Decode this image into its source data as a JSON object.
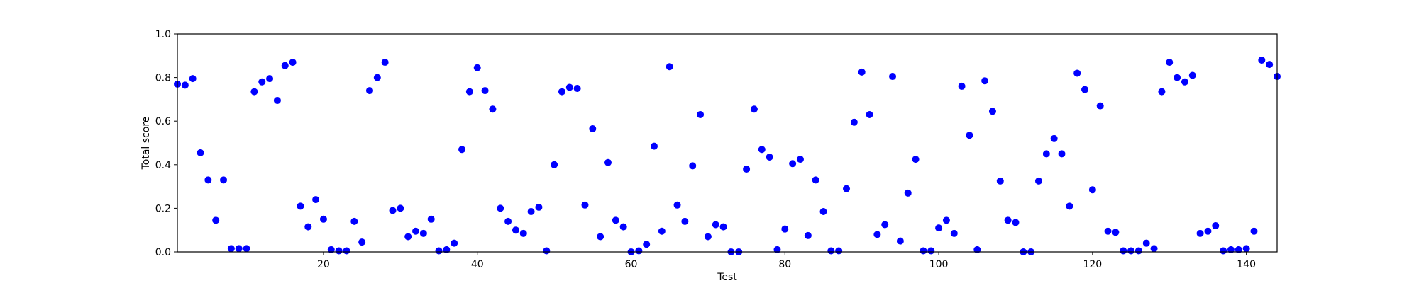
{
  "colors": {
    "point": "#0000ff",
    "axis": "#000000",
    "background": "#ffffff"
  },
  "chart_data": {
    "type": "scatter",
    "title": "",
    "xlabel": "Test",
    "ylabel": "Total score",
    "xlim": [
      1,
      144
    ],
    "ylim": [
      0.0,
      1.0
    ],
    "xticks": [
      20,
      40,
      60,
      80,
      100,
      120,
      140
    ],
    "xtick_labels": [
      "20",
      "40",
      "60",
      "80",
      "100",
      "120",
      "140"
    ],
    "yticks": [
      0.0,
      0.2,
      0.4,
      0.6,
      0.8,
      1.0
    ],
    "ytick_labels": [
      "0.0",
      "0.2",
      "0.4",
      "0.6",
      "0.8",
      "1.0"
    ],
    "grid": false,
    "legend": "none",
    "x": [
      1,
      2,
      3,
      4,
      5,
      6,
      7,
      8,
      9,
      10,
      11,
      12,
      13,
      14,
      15,
      16,
      17,
      18,
      19,
      20,
      21,
      22,
      23,
      24,
      25,
      26,
      27,
      28,
      29,
      30,
      31,
      32,
      33,
      34,
      35,
      36,
      37,
      38,
      39,
      40,
      41,
      42,
      43,
      44,
      45,
      46,
      47,
      48,
      49,
      50,
      51,
      52,
      53,
      54,
      55,
      56,
      57,
      58,
      59,
      60,
      61,
      62,
      63,
      64,
      65,
      66,
      67,
      68,
      69,
      70,
      71,
      72,
      73,
      74,
      75,
      76,
      77,
      78,
      79,
      80,
      81,
      82,
      83,
      84,
      85,
      86,
      87,
      88,
      89,
      90,
      91,
      92,
      93,
      94,
      95,
      96,
      97,
      98,
      99,
      100,
      101,
      102,
      103,
      104,
      105,
      106,
      107,
      108,
      109,
      110,
      111,
      112,
      113,
      114,
      115,
      116,
      117,
      118,
      119,
      120,
      121,
      122,
      123,
      124,
      125,
      126,
      127,
      128,
      129,
      130,
      131,
      132,
      133,
      134,
      135,
      136,
      137,
      138,
      139,
      140,
      141,
      142,
      143,
      144
    ],
    "y": [
      0.77,
      0.765,
      0.795,
      0.455,
      0.33,
      0.145,
      0.33,
      0.015,
      0.015,
      0.015,
      0.735,
      0.78,
      0.795,
      0.695,
      0.855,
      0.87,
      0.21,
      0.115,
      0.24,
      0.15,
      0.01,
      0.005,
      0.005,
      0.14,
      0.045,
      0.74,
      0.8,
      0.87,
      0.19,
      0.2,
      0.07,
      0.095,
      0.085,
      0.15,
      0.005,
      0.01,
      0.04,
      0.47,
      0.735,
      0.845,
      0.74,
      0.655,
      0.2,
      0.14,
      0.1,
      0.085,
      0.185,
      0.205,
      0.005,
      0.4,
      0.735,
      0.755,
      0.75,
      0.215,
      0.565,
      0.07,
      0.41,
      0.145,
      0.115,
      0.0,
      0.005,
      0.035,
      0.485,
      0.095,
      0.85,
      0.215,
      0.14,
      0.395,
      0.63,
      0.07,
      0.125,
      0.115,
      0.0,
      0.0,
      0.38,
      0.655,
      0.47,
      0.435,
      0.01,
      0.105,
      0.405,
      0.425,
      0.075,
      0.33,
      0.185,
      0.005,
      0.005,
      0.29,
      0.595,
      0.825,
      0.63,
      0.08,
      0.125,
      0.805,
      0.05,
      0.27,
      0.425,
      0.005,
      0.005,
      0.11,
      0.145,
      0.085,
      0.76,
      0.535,
      0.01,
      0.785,
      0.645,
      0.325,
      0.145,
      0.135,
      0.0,
      0.0,
      0.325,
      0.45,
      0.52,
      0.45,
      0.21,
      0.82,
      0.745,
      0.285,
      0.67,
      0.095,
      0.09,
      0.005,
      0.005,
      0.005,
      0.04,
      0.015,
      0.735,
      0.87,
      0.8,
      0.78,
      0.81,
      0.085,
      0.095,
      0.12,
      0.005,
      0.01,
      0.01,
      0.015,
      0.095,
      0.88,
      0.86,
      0.805
    ]
  }
}
